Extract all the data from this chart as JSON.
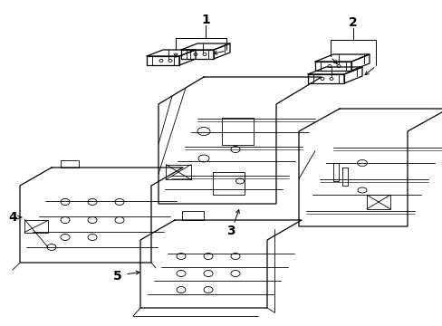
{
  "bg_color": "#ffffff",
  "line_color": "#000000",
  "fig_width": 4.89,
  "fig_height": 3.6,
  "dpi": 100,
  "label_fontsize": 10
}
